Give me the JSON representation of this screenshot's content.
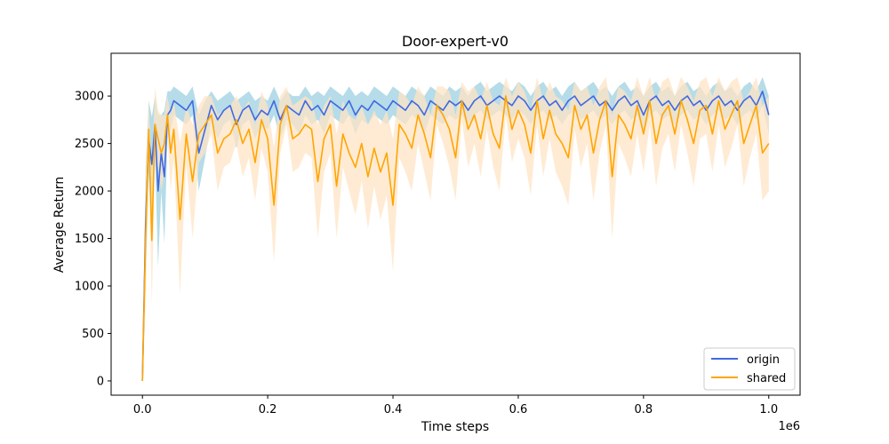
{
  "chart_data": {
    "type": "line",
    "title": "Door-expert-v0",
    "xlabel": "Time steps",
    "ylabel": "Average Return",
    "x_offset_label": "1e6",
    "xlim": [
      -0.05,
      1.05
    ],
    "ylim": [
      -150,
      3450
    ],
    "xticks": [
      0.0,
      0.2,
      0.4,
      0.6,
      0.8,
      1.0
    ],
    "xtick_labels": [
      "0.0",
      "0.2",
      "0.4",
      "0.6",
      "0.8",
      "1.0"
    ],
    "yticks": [
      0,
      500,
      1000,
      1500,
      2000,
      2500,
      3000
    ],
    "ytick_labels": [
      "0",
      "500",
      "1000",
      "1500",
      "2000",
      "2500",
      "3000"
    ],
    "legend_position": "lower-right",
    "x": [
      0.0,
      0.005,
      0.01,
      0.015,
      0.02,
      0.025,
      0.03,
      0.035,
      0.04,
      0.045,
      0.05,
      0.06,
      0.07,
      0.08,
      0.09,
      0.1,
      0.11,
      0.12,
      0.13,
      0.14,
      0.15,
      0.16,
      0.17,
      0.18,
      0.19,
      0.2,
      0.21,
      0.22,
      0.23,
      0.24,
      0.25,
      0.26,
      0.27,
      0.28,
      0.29,
      0.3,
      0.31,
      0.32,
      0.33,
      0.34,
      0.35,
      0.36,
      0.37,
      0.38,
      0.39,
      0.4,
      0.41,
      0.42,
      0.43,
      0.44,
      0.45,
      0.46,
      0.47,
      0.48,
      0.49,
      0.5,
      0.51,
      0.52,
      0.53,
      0.54,
      0.55,
      0.56,
      0.57,
      0.58,
      0.59,
      0.6,
      0.61,
      0.62,
      0.63,
      0.64,
      0.65,
      0.66,
      0.67,
      0.68,
      0.69,
      0.7,
      0.71,
      0.72,
      0.73,
      0.74,
      0.75,
      0.76,
      0.77,
      0.78,
      0.79,
      0.8,
      0.81,
      0.82,
      0.83,
      0.84,
      0.85,
      0.86,
      0.87,
      0.88,
      0.89,
      0.9,
      0.91,
      0.92,
      0.93,
      0.94,
      0.95,
      0.96,
      0.97,
      0.98,
      0.99,
      1.0
    ],
    "series": [
      {
        "name": "origin",
        "color": "#4169e1",
        "band_color": "#add8e6",
        "values": [
          0,
          1650,
          2550,
          2280,
          2700,
          2000,
          2400,
          2150,
          2800,
          2850,
          2950,
          2900,
          2850,
          2950,
          2400,
          2650,
          2900,
          2750,
          2850,
          2900,
          2700,
          2850,
          2900,
          2750,
          2850,
          2800,
          2950,
          2750,
          2900,
          2850,
          2800,
          2950,
          2850,
          2900,
          2800,
          2950,
          2900,
          2850,
          2950,
          2800,
          2900,
          2850,
          2950,
          2900,
          2850,
          2950,
          2900,
          2850,
          2950,
          2900,
          2800,
          2950,
          2900,
          2850,
          2950,
          2900,
          2950,
          2850,
          2950,
          3000,
          2900,
          2950,
          3000,
          2950,
          2900,
          3000,
          2950,
          2850,
          2950,
          3000,
          2900,
          2950,
          2850,
          2950,
          3000,
          2900,
          2950,
          3000,
          2900,
          2950,
          2850,
          2950,
          3000,
          2900,
          2950,
          2800,
          2950,
          3000,
          2900,
          2950,
          2850,
          2950,
          3000,
          2900,
          2950,
          2850,
          2950,
          3000,
          2900,
          2950,
          2850,
          2950,
          3000,
          2900,
          3050,
          2800
        ],
        "spread": [
          0,
          600,
          400,
          500,
          300,
          800,
          400,
          700,
          250,
          200,
          150,
          150,
          150,
          150,
          400,
          300,
          150,
          200,
          150,
          150,
          250,
          150,
          150,
          200,
          150,
          150,
          150,
          200,
          150,
          150,
          200,
          150,
          150,
          150,
          200,
          150,
          150,
          150,
          150,
          200,
          150,
          150,
          150,
          150,
          150,
          150,
          150,
          150,
          150,
          150,
          200,
          150,
          150,
          150,
          150,
          150,
          150,
          150,
          150,
          150,
          150,
          150,
          150,
          150,
          150,
          150,
          150,
          150,
          150,
          150,
          150,
          150,
          150,
          150,
          150,
          150,
          150,
          150,
          150,
          150,
          150,
          150,
          150,
          150,
          150,
          200,
          150,
          150,
          150,
          150,
          150,
          150,
          150,
          150,
          150,
          150,
          150,
          150,
          150,
          150,
          150,
          150,
          150,
          150,
          150,
          200
        ]
      },
      {
        "name": "shared",
        "color": "#ffa500",
        "band_color": "#ffe4c4",
        "values": [
          0,
          1500,
          2650,
          1480,
          2700,
          2550,
          2400,
          2500,
          2800,
          2400,
          2650,
          1700,
          2600,
          2100,
          2600,
          2700,
          2800,
          2400,
          2550,
          2600,
          2750,
          2500,
          2650,
          2300,
          2750,
          2550,
          1850,
          2700,
          2900,
          2550,
          2600,
          2700,
          2650,
          2100,
          2550,
          2700,
          2050,
          2600,
          2400,
          2250,
          2500,
          2150,
          2450,
          2200,
          2400,
          1850,
          2700,
          2600,
          2450,
          2800,
          2600,
          2350,
          2900,
          2800,
          2650,
          2350,
          2950,
          2650,
          2800,
          2550,
          2900,
          2600,
          2450,
          3000,
          2650,
          2850,
          2700,
          2400,
          2950,
          2550,
          2850,
          2600,
          2500,
          2350,
          2900,
          2650,
          2800,
          2400,
          2750,
          2950,
          2150,
          2800,
          2700,
          2550,
          2900,
          2600,
          2950,
          2500,
          2800,
          2900,
          2600,
          2950,
          2750,
          2500,
          2850,
          2900,
          2600,
          2950,
          2650,
          2800,
          2950,
          2500,
          2700,
          2900,
          2400,
          2500
        ],
        "spread": [
          0,
          700,
          300,
          700,
          400,
          300,
          400,
          300,
          200,
          400,
          300,
          800,
          300,
          600,
          300,
          300,
          200,
          400,
          300,
          300,
          250,
          350,
          300,
          400,
          300,
          350,
          600,
          300,
          200,
          350,
          350,
          300,
          300,
          600,
          350,
          300,
          550,
          350,
          400,
          500,
          400,
          550,
          400,
          500,
          450,
          700,
          350,
          400,
          450,
          300,
          400,
          450,
          200,
          300,
          400,
          450,
          200,
          400,
          300,
          400,
          250,
          350,
          450,
          200,
          350,
          300,
          350,
          450,
          250,
          400,
          300,
          400,
          450,
          500,
          250,
          400,
          300,
          500,
          350,
          250,
          650,
          300,
          350,
          400,
          300,
          400,
          250,
          450,
          350,
          300,
          400,
          250,
          350,
          450,
          300,
          300,
          400,
          250,
          400,
          350,
          250,
          450,
          350,
          300,
          500,
          500
        ]
      }
    ]
  }
}
